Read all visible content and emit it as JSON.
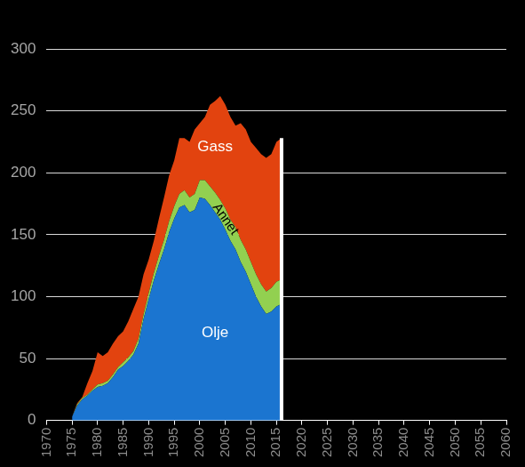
{
  "chart_data": {
    "type": "area",
    "stacked": true,
    "x": [
      1975,
      1976,
      1977,
      1978,
      1979,
      1980,
      1981,
      1982,
      1983,
      1984,
      1985,
      1986,
      1987,
      1988,
      1989,
      1990,
      1991,
      1992,
      1993,
      1994,
      1995,
      1996,
      1997,
      1998,
      1999,
      2000,
      2001,
      2002,
      2003,
      2004,
      2005,
      2006,
      2007,
      2008,
      2009,
      2010,
      2011,
      2012,
      2013,
      2014,
      2015,
      2016
    ],
    "series": [
      {
        "name": "Olje",
        "color": "#1b75d0",
        "values": [
          3,
          12,
          17,
          20,
          24,
          27,
          28,
          30,
          35,
          41,
          44,
          48,
          53,
          62,
          82,
          98,
          113,
          126,
          138,
          152,
          163,
          172,
          174,
          168,
          170,
          180,
          179,
          174,
          168,
          162,
          154,
          145,
          138,
          128,
          120,
          110,
          100,
          92,
          86,
          88,
          92,
          94
        ]
      },
      {
        "name": "Annet",
        "color": "#92d050",
        "values": [
          0,
          1,
          1,
          1,
          1,
          2,
          2,
          2,
          2,
          2,
          3,
          3,
          3,
          4,
          4,
          5,
          6,
          7,
          8,
          9,
          10,
          11,
          12,
          12,
          13,
          14,
          15,
          15,
          16,
          16,
          17,
          17,
          18,
          18,
          18,
          18,
          18,
          18,
          18,
          19,
          20,
          20
        ]
      },
      {
        "name": "Gass",
        "color": "#e2430f",
        "values": [
          0,
          1,
          1,
          9,
          15,
          26,
          22,
          23,
          25,
          25,
          25,
          29,
          34,
          34,
          32,
          27,
          26,
          30,
          34,
          37,
          37,
          45,
          42,
          45,
          52,
          46,
          51,
          66,
          74,
          84,
          84,
          83,
          82,
          94,
          97,
          97,
          102,
          105,
          108,
          108,
          113,
          114
        ]
      }
    ],
    "xlim": [
      1970,
      2060
    ],
    "xticks": [
      1970,
      1975,
      1980,
      1985,
      1990,
      1995,
      2000,
      2005,
      2010,
      2015,
      2020,
      2025,
      2030,
      2035,
      2040,
      2045,
      2050,
      2055,
      2060
    ],
    "ylim": [
      0,
      300
    ],
    "yticks": [
      0,
      50,
      100,
      150,
      200,
      250,
      300
    ],
    "grid": true,
    "vertical_line_x": 2016
  }
}
